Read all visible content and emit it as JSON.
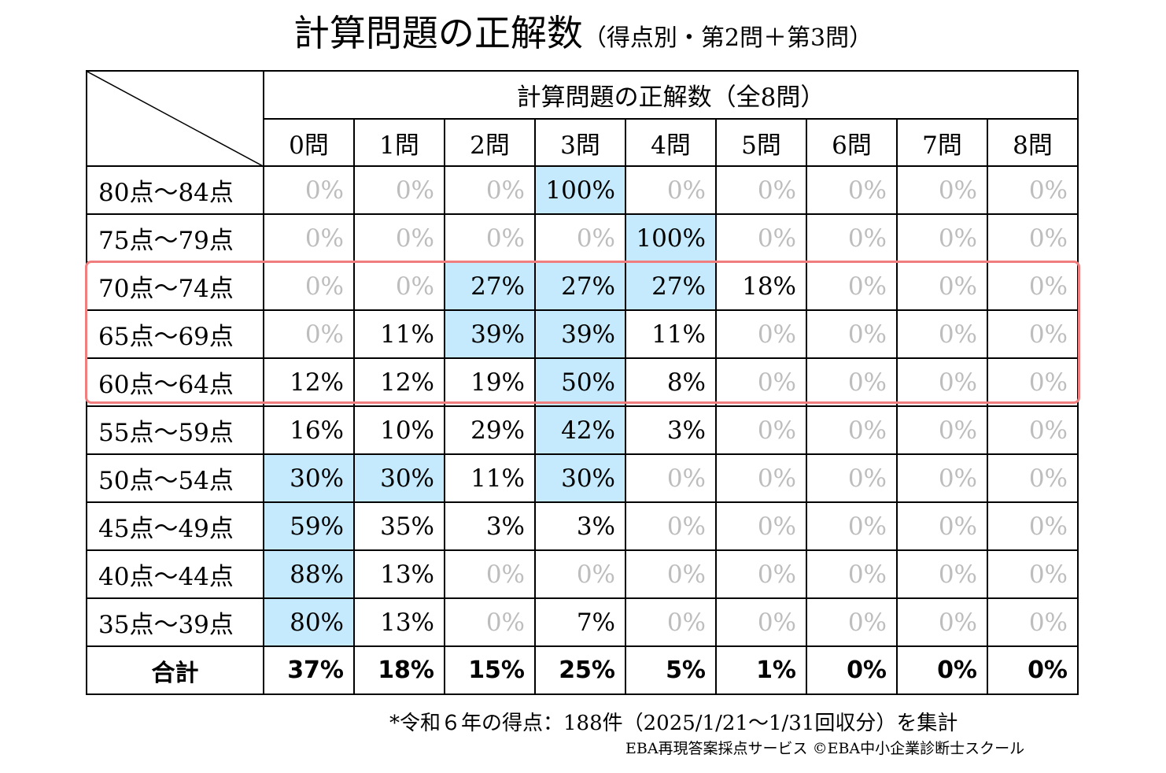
{
  "title": "計算問題の正解数",
  "subtitle": "（得点別・第2問＋第3問）",
  "header_title": "計算問題の正解数（全8問）",
  "footnote": "*令和６年の得点：188件（2025/1/21〜1/31回収分）を集計",
  "credit": "EBA再現答案採点サービス ©EBA中小企業診断士スクール",
  "highlight_color": "#c5eafd",
  "frame_color": "#f07e7e",
  "chart_data": {
    "type": "table",
    "columns": [
      "0問",
      "1問",
      "2問",
      "3問",
      "4問",
      "5問",
      "6問",
      "7問",
      "8問"
    ],
    "rows": [
      {
        "label": "80点〜84点",
        "values": [
          "0%",
          "0%",
          "0%",
          "100%",
          "0%",
          "0%",
          "0%",
          "0%",
          "0%"
        ],
        "highlight": [
          3
        ]
      },
      {
        "label": "75点〜79点",
        "values": [
          "0%",
          "0%",
          "0%",
          "0%",
          "100%",
          "0%",
          "0%",
          "0%",
          "0%"
        ],
        "highlight": [
          4
        ]
      },
      {
        "label": "70点〜74点",
        "values": [
          "0%",
          "0%",
          "27%",
          "27%",
          "27%",
          "18%",
          "0%",
          "0%",
          "0%"
        ],
        "highlight": [
          2,
          3,
          4
        ]
      },
      {
        "label": "65点〜69点",
        "values": [
          "0%",
          "11%",
          "39%",
          "39%",
          "11%",
          "0%",
          "0%",
          "0%",
          "0%"
        ],
        "highlight": [
          2,
          3
        ]
      },
      {
        "label": "60点〜64点",
        "values": [
          "12%",
          "12%",
          "19%",
          "50%",
          "8%",
          "0%",
          "0%",
          "0%",
          "0%"
        ],
        "highlight": [
          3
        ]
      },
      {
        "label": "55点〜59点",
        "values": [
          "16%",
          "10%",
          "29%",
          "42%",
          "3%",
          "0%",
          "0%",
          "0%",
          "0%"
        ],
        "highlight": [
          3
        ]
      },
      {
        "label": "50点〜54点",
        "values": [
          "30%",
          "30%",
          "11%",
          "30%",
          "0%",
          "0%",
          "0%",
          "0%",
          "0%"
        ],
        "highlight": [
          0,
          1,
          3
        ]
      },
      {
        "label": "45点〜49点",
        "values": [
          "59%",
          "35%",
          "3%",
          "3%",
          "0%",
          "0%",
          "0%",
          "0%",
          "0%"
        ],
        "highlight": [
          0
        ]
      },
      {
        "label": "40点〜44点",
        "values": [
          "88%",
          "13%",
          "0%",
          "0%",
          "0%",
          "0%",
          "0%",
          "0%",
          "0%"
        ],
        "highlight": [
          0
        ]
      },
      {
        "label": "35点〜39点",
        "values": [
          "80%",
          "13%",
          "0%",
          "7%",
          "0%",
          "0%",
          "0%",
          "0%",
          "0%"
        ],
        "highlight": [
          0
        ]
      }
    ],
    "total": {
      "label": "合計",
      "values": [
        "37%",
        "18%",
        "15%",
        "25%",
        "5%",
        "1%",
        "0%",
        "0%",
        "0%"
      ]
    },
    "framed_rows": [
      "70点〜74点",
      "65点〜69点",
      "60点〜64点"
    ]
  }
}
